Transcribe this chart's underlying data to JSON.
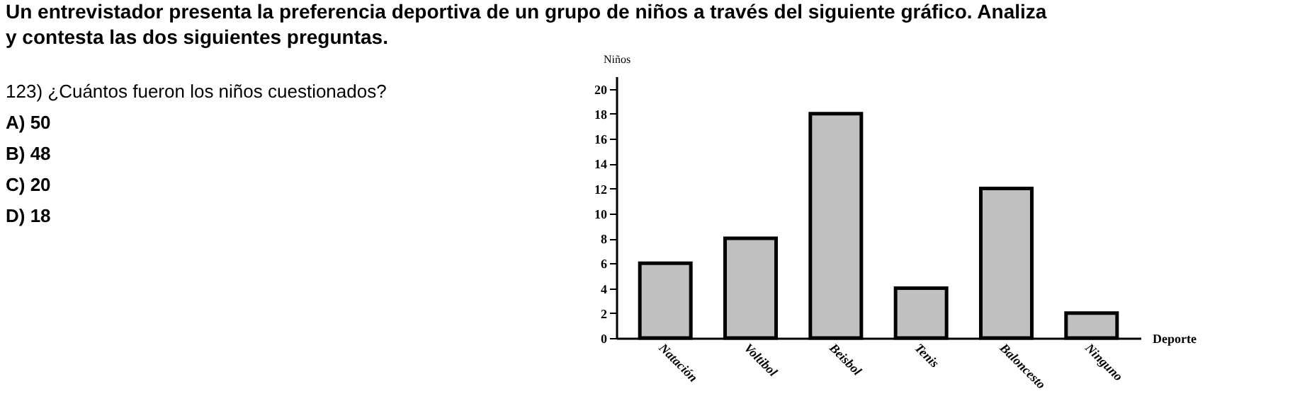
{
  "chart_data": {
    "type": "bar",
    "title": [
      "Un entrevistador presenta la preferencia deportiva de un grupo de niños a través del siguiente gráfico. Analiza",
      "y contesta las dos siguientes preguntas."
    ],
    "annotations": [
      "123)      ¿Cuántos fueron los niños cuestionados?",
      "A) 50",
      "B) 48",
      "C) 20",
      "D) 18"
    ],
    "xlabel": "Deporte",
    "ylabel": "Niños",
    "categories": [
      "Natación",
      "Voltibol",
      "Beisbol",
      "Tenis",
      "Baloncesto",
      "Ninguno"
    ],
    "values": [
      6,
      8,
      18,
      4,
      12,
      2
    ],
    "color": "#c0c0c0",
    "ylim": [
      0,
      21
    ],
    "yticks": [
      0,
      2,
      4,
      6,
      8,
      10,
      12,
      14,
      16,
      18,
      20
    ],
    "grid": false
  }
}
